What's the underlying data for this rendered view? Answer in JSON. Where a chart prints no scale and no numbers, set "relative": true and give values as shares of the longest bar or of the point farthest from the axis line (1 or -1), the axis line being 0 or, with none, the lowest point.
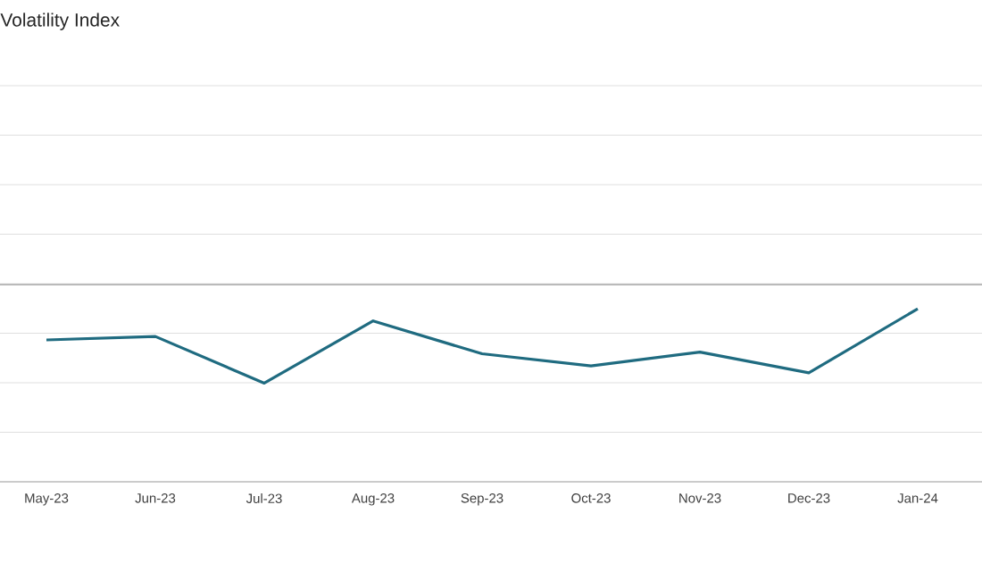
{
  "chart_data": {
    "type": "line",
    "title": "Volatility Index",
    "relative": true,
    "categories": [
      "May-23",
      "Jun-23",
      "Jul-23",
      "Aug-23",
      "Sep-23",
      "Oct-23",
      "Nov-23",
      "Dec-23",
      "Jan-24"
    ],
    "series": [
      {
        "color": "#1f6b80",
        "values": [
          0.82,
          0.84,
          0.57,
          0.93,
          0.74,
          0.67,
          0.75,
          0.63,
          1.0
        ]
      }
    ],
    "ref_lines": [
      {
        "axis": "y",
        "value": 1.14,
        "color": "#a6a6a6"
      }
    ],
    "grid": "y",
    "marker": "none",
    "line_style": "solid"
  }
}
